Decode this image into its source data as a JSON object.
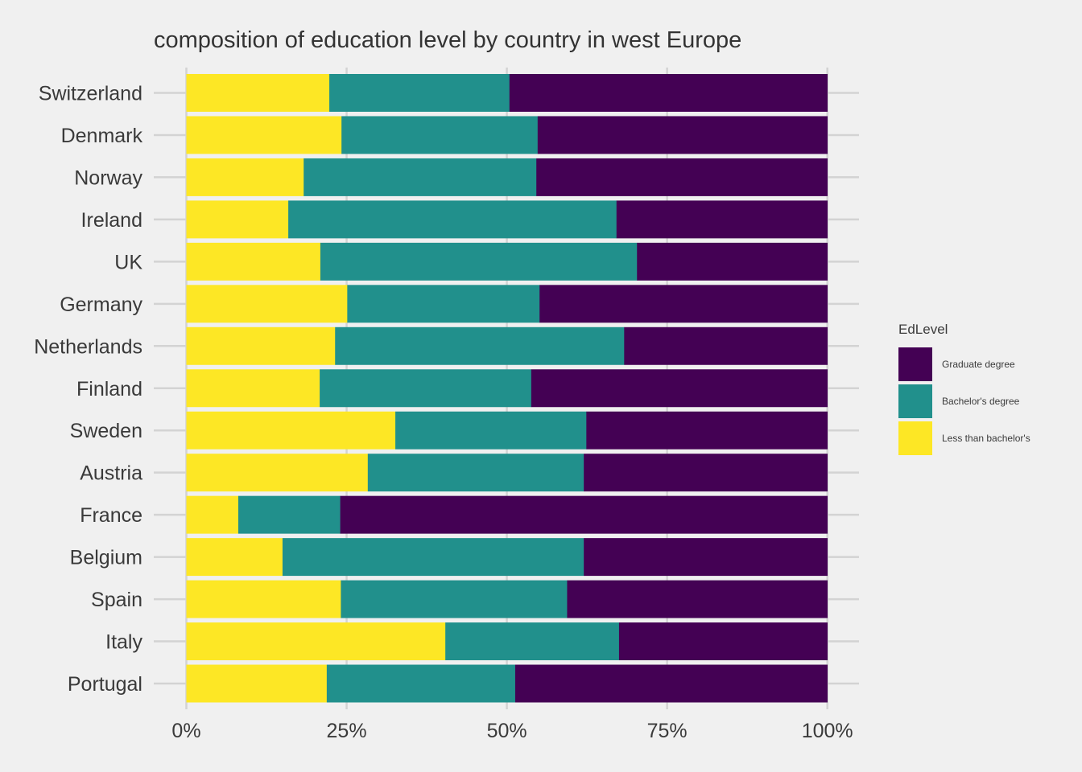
{
  "chart_data": {
    "type": "bar",
    "orientation": "horizontal",
    "stacked": "percent",
    "title": "composition of education level by country in west Europe",
    "xlabel": "",
    "ylabel": "",
    "xlim": [
      0,
      100
    ],
    "x_ticks": [
      "0%",
      "25%",
      "50%",
      "75%",
      "100%"
    ],
    "x_tick_values": [
      0,
      25,
      50,
      75,
      100
    ],
    "grid": true,
    "legend_position": "right",
    "legend_title": "EdLevel",
    "categories": [
      "Switzerland",
      "Denmark",
      "Norway",
      "Ireland",
      "UK",
      "Germany",
      "Netherlands",
      "Finland",
      "Sweden",
      "Austria",
      "France",
      "Belgium",
      "Spain",
      "Italy",
      "Portugal"
    ],
    "series": [
      {
        "name": "Less than bachelor's",
        "color": "#fde725",
        "values": [
          22.3,
          24.2,
          18.3,
          15.9,
          20.9,
          25.1,
          23.2,
          20.8,
          32.6,
          28.3,
          8.1,
          15.0,
          24.1,
          40.4,
          21.9
        ]
      },
      {
        "name": "Bachelor's degree",
        "color": "#21908c",
        "values": [
          28.1,
          30.6,
          36.3,
          51.2,
          49.4,
          30.0,
          45.1,
          33.0,
          29.8,
          33.7,
          15.9,
          47.0,
          35.3,
          27.1,
          29.4
        ]
      },
      {
        "name": "Graduate degree",
        "color": "#440154",
        "values": [
          49.6,
          45.2,
          45.4,
          32.9,
          29.7,
          44.9,
          31.7,
          46.2,
          37.6,
          38.0,
          76.0,
          38.0,
          40.6,
          32.5,
          48.7
        ]
      }
    ],
    "legend_order": [
      "Graduate degree",
      "Bachelor's degree",
      "Less than bachelor's"
    ]
  }
}
